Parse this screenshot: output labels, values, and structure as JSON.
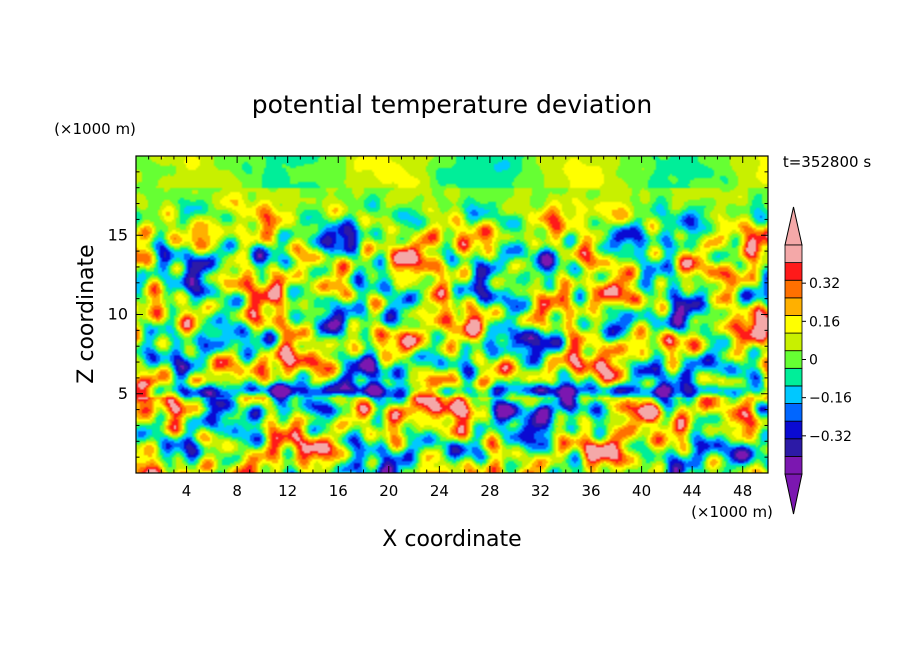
{
  "chart_data": {
    "type": "heatmap",
    "title": "potential temperature deviation",
    "xlabel": "X coordinate",
    "ylabel": "Z coordinate",
    "x_unit": "(×1000 m)",
    "y_unit": "(×1000 m)",
    "time_label": "t=352800 s",
    "xlim": [
      0,
      50
    ],
    "ylim": [
      0,
      20
    ],
    "x_ticks": [
      4,
      8,
      12,
      16,
      20,
      24,
      28,
      32,
      36,
      40,
      44,
      48
    ],
    "y_ticks": [
      5,
      10,
      15
    ],
    "colorbar": {
      "levels": [
        -0.48,
        -0.4,
        -0.32,
        -0.24,
        -0.16,
        -0.08,
        0,
        0.08,
        0.16,
        0.24,
        0.32,
        0.4,
        0.48
      ],
      "colors": [
        "#7b17b0",
        "#2c1aa6",
        "#0a0ad2",
        "#0066ff",
        "#00c8ff",
        "#00ee99",
        "#66ff33",
        "#c8f000",
        "#ffff00",
        "#ffb000",
        "#ff7000",
        "#ff1a1a",
        "#f4a8a8"
      ],
      "under_color": "#7b17b0",
      "over_color": "#f4a8a8",
      "tick_labels": [
        "0.32",
        "0.16",
        "0",
        "−0.16",
        "−0.32"
      ],
      "tick_values": [
        0.32,
        0.16,
        0,
        -0.16,
        -0.32
      ]
    }
  }
}
